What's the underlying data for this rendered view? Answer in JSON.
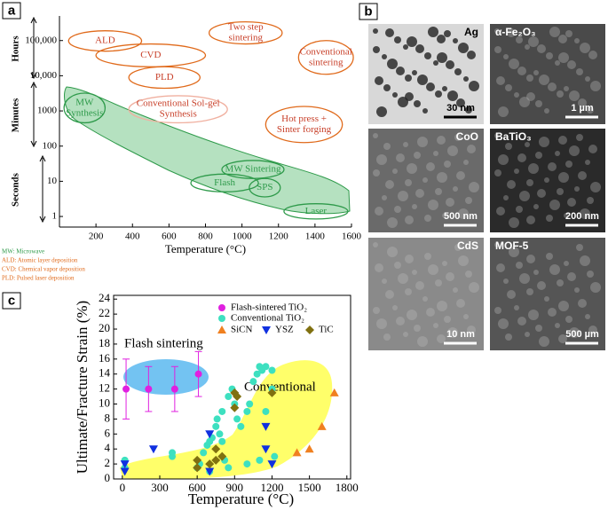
{
  "panel_labels": [
    "a",
    "b",
    "c"
  ],
  "chart_data": [
    {
      "type": "region",
      "xlabel": "Temperature (°C)",
      "xlim": [
        0,
        1600
      ],
      "xticks": [
        200,
        400,
        600,
        800,
        1000,
        1200,
        1400,
        1600
      ],
      "ylim": [
        0.5,
        500000
      ],
      "yscale": "log",
      "yticks": [
        1,
        10,
        100,
        1000,
        {
          "value": 10000,
          "label": "10,000"
        },
        {
          "value": 100000,
          "label": "100,000"
        }
      ],
      "time_labels": [
        "Hours",
        "Minutes",
        "Seconds"
      ],
      "regions": [
        {
          "label": [
            "ALD"
          ],
          "x": [
            50,
            450
          ],
          "y": [
            50000,
            190000
          ],
          "color": "#e06a1b"
        },
        {
          "label": [
            "CVD"
          ],
          "x": [
            200,
            800
          ],
          "y": [
            18000,
            80000
          ],
          "color": "#e06a1b"
        },
        {
          "label": [
            "PLD"
          ],
          "x": [
            380,
            770
          ],
          "y": [
            4400,
            18000
          ],
          "color": "#e06a1b"
        },
        {
          "label": [
            "Two step",
            "sintering"
          ],
          "x": [
            820,
            1220
          ],
          "y": [
            80000,
            340000
          ],
          "color": "#e06a1b"
        },
        {
          "label": [
            "Conventional",
            "sintering"
          ],
          "x": [
            1310,
            1610
          ],
          "y": [
            11000,
            100000
          ],
          "color": "#e06a1b"
        },
        {
          "label": [
            "MW",
            "Synthesis"
          ],
          "x": [
            25,
            250
          ],
          "y": [
            460,
            3200
          ],
          "color": "#2e9a4a"
        },
        {
          "label": [
            "Conventional Sol-gel",
            "Synthesis"
          ],
          "x": [
            380,
            920
          ],
          "y": [
            460,
            2700
          ],
          "color": "#f0b0a0"
        },
        {
          "label": [
            "Hot press +",
            "Sinter forging"
          ],
          "x": [
            1130,
            1550
          ],
          "y": [
            126,
            1340
          ],
          "color": "#e06a1b"
        },
        {
          "label": [
            "MW Sintering"
          ],
          "x": [
            890,
            1230
          ],
          "y": [
            12,
            39
          ],
          "color": "#2e9a4a"
        },
        {
          "label": [
            "Flash"
          ],
          "x": [
            720,
            1090
          ],
          "y": [
            5,
            16
          ],
          "color": "#2e9a4a"
        },
        {
          "label": [
            "SPS"
          ],
          "x": [
            1040,
            1210
          ],
          "y": [
            3.6,
            12
          ],
          "color": "#2e9a4a"
        },
        {
          "label": [
            "Laser"
          ],
          "x": [
            1230,
            1580
          ],
          "y": [
            0.85,
            2.3
          ],
          "color": "#2e9a4a"
        }
      ],
      "notes": [
        {
          "text": "MW: Microwave",
          "color": "#2e9a4a"
        },
        {
          "text": "ALD: Atomic layer deposition",
          "color": "#e06a1b"
        },
        {
          "text": "CVD: Chemical vapor deposition",
          "color": "#e06a1b"
        },
        {
          "text": "PLD: Pulsed laser deposition",
          "color": "#e06a1b"
        }
      ]
    },
    {
      "type": "scatter",
      "xlabel": "Temperature (°C)",
      "ylabel": "Ultimate/Fracture Strain (%)",
      "xlim": [
        -70,
        1830
      ],
      "xticks": [
        0,
        300,
        600,
        900,
        1200,
        1500,
        1800
      ],
      "ylim": [
        0,
        24.5
      ],
      "yticks": [
        0,
        2,
        4,
        6,
        8,
        10,
        12,
        14,
        16,
        18,
        20,
        22,
        24
      ],
      "annotations": [
        "Flash sintering",
        "Conventional"
      ],
      "series": [
        {
          "name": "Flash-sintered TiO₂",
          "color": "#e020e0",
          "marker": "circle",
          "x": [
            30,
            210,
            420,
            610
          ],
          "y": [
            12,
            12,
            12,
            14
          ],
          "errors": [
            4,
            3,
            3,
            3
          ]
        },
        {
          "name": "Conventional TiO₂",
          "color": "#3de0c0",
          "marker": "circle",
          "x": [
            20,
            20,
            400,
            400,
            600,
            620,
            650,
            680,
            700,
            720,
            750,
            760,
            780,
            800,
            800,
            820,
            850,
            880,
            900,
            920,
            950,
            1000,
            1020,
            1050,
            1080,
            1100,
            1120,
            1150,
            1200,
            1200,
            1150,
            1100,
            1000,
            850,
            700,
            1220
          ],
          "y": [
            2.5,
            1.5,
            3.5,
            3,
            1.5,
            2,
            3.5,
            4.5,
            5,
            5.5,
            7,
            8,
            6,
            9,
            5,
            2.5,
            11,
            12,
            10,
            8,
            7,
            9,
            10,
            13,
            14,
            15,
            14.5,
            15,
            14.5,
            12,
            9,
            2.5,
            2,
            1.5,
            1,
            3
          ]
        },
        {
          "name": "SiCN",
          "color": "#f08020",
          "marker": "triangle-up",
          "x": [
            1400,
            1500,
            1600,
            1700
          ],
          "y": [
            3.5,
            4,
            7,
            11.5
          ]
        },
        {
          "name": "YSZ",
          "color": "#1030e0",
          "marker": "triangle-down",
          "x": [
            20,
            20,
            250,
            700,
            700,
            1150,
            1150,
            1200
          ],
          "y": [
            2,
            1,
            4,
            6,
            1,
            7,
            4,
            2
          ]
        },
        {
          "name": "TiC",
          "color": "#807010",
          "marker": "diamond",
          "x": [
            600,
            600,
            700,
            750,
            750,
            800,
            900,
            900,
            1200,
            920
          ],
          "y": [
            1.5,
            2.5,
            2,
            4,
            2.5,
            3,
            9.5,
            11.5,
            11.5,
            11
          ]
        }
      ]
    }
  ],
  "micrographs": [
    {
      "label": "Ag",
      "scale": "30 nm"
    },
    {
      "label": "α-Fe₂O₃",
      "scale": "1 µm"
    },
    {
      "label": "CoO",
      "scale": "500 nm"
    },
    {
      "label": "BaTiO₃",
      "scale": "200 nm"
    },
    {
      "label": "CdS",
      "scale": "10 nm"
    },
    {
      "label": "MOF-5",
      "scale": "500 µm"
    }
  ]
}
